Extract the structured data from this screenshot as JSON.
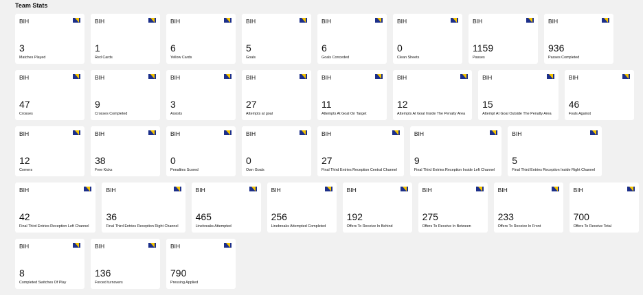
{
  "header": {
    "title": "Team Stats"
  },
  "rows": [
    [
      {
        "team": "BIH",
        "value": 3,
        "label": "Matches Played"
      },
      {
        "team": "BIH",
        "value": 1,
        "label": "Red Cards"
      },
      {
        "team": "BIH",
        "value": 6,
        "label": "Yellow Cards"
      },
      {
        "team": "BIH",
        "value": 5,
        "label": "Goals"
      },
      {
        "team": "BIH",
        "value": 6,
        "label": "Goals Conceded"
      },
      {
        "team": "BIH",
        "value": 0,
        "label": "Clean Sheets"
      },
      {
        "team": "BIH",
        "value": 1159,
        "label": "Passes"
      },
      {
        "team": "BIH",
        "value": 936,
        "label": "Passes Completed"
      }
    ],
    [
      {
        "team": "BIH",
        "value": 47,
        "label": "Crosses"
      },
      {
        "team": "BIH",
        "value": 9,
        "label": "Crosses Completed"
      },
      {
        "team": "BIH",
        "value": 3,
        "label": "Assists"
      },
      {
        "team": "BIH",
        "value": 27,
        "label": "Attempts at goal"
      },
      {
        "team": "BIH",
        "value": 11,
        "label": "Attempts At Goal On Target"
      },
      {
        "team": "BIH",
        "value": 12,
        "label": "Attempts At Goal Inside The Penalty Area"
      },
      {
        "team": "BIH",
        "value": 15,
        "label": "Attempt At Goal Outside The Penalty Area"
      },
      {
        "team": "BIH",
        "value": 46,
        "label": "Fouls Against"
      }
    ],
    [
      {
        "team": "BIH",
        "value": 12,
        "label": "Corners"
      },
      {
        "team": "BIH",
        "value": 38,
        "label": "Free Kicks"
      },
      {
        "team": "BIH",
        "value": 0,
        "label": "Penalties Scored"
      },
      {
        "team": "BIH",
        "value": 0,
        "label": "Own Goals"
      },
      {
        "team": "BIH",
        "value": 27,
        "label": "Final Third Entries Reception Central Channel"
      },
      {
        "team": "BIH",
        "value": 9,
        "label": "Final Third Entries Reception Inside Left Channel"
      },
      {
        "team": "BIH",
        "value": 5,
        "label": "Final Third Entries Reception Inside Right Channel"
      }
    ],
    [
      {
        "team": "BIH",
        "value": 42,
        "label": "Final Third Entries Reception Left Channel"
      },
      {
        "team": "BIH",
        "value": 36,
        "label": "Final Third Entries Reception Right Channel"
      },
      {
        "team": "BIH",
        "value": 465,
        "label": "Linebreaks Attempted"
      },
      {
        "team": "BIH",
        "value": 256,
        "label": "Linebreaks Attempted Completed"
      },
      {
        "team": "BIH",
        "value": 192,
        "label": "Offers To Receive In Behind"
      },
      {
        "team": "BIH",
        "value": 275,
        "label": "Offers To Receive In Between"
      },
      {
        "team": "BIH",
        "value": 233,
        "label": "Offers To Receive In Front"
      },
      {
        "team": "BIH",
        "value": 700,
        "label": "Offers To Receive Total"
      }
    ],
    [
      {
        "team": "BIH",
        "value": 8,
        "label": "Completed Switches Of Play"
      },
      {
        "team": "BIH",
        "value": 136,
        "label": "Forced turnovers"
      },
      {
        "team": "BIH",
        "value": 790,
        "label": "Pressing Applied"
      }
    ]
  ]
}
